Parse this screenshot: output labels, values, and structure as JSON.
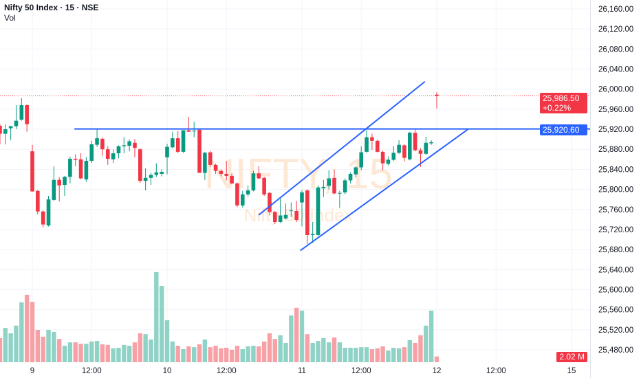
{
  "legend": {
    "title": "Nifty 50 Index · 15 · NSE",
    "volume": "Vol"
  },
  "watermark": {
    "line1": "NIFTY, 15",
    "line2": "Nifty 50 Index"
  },
  "colors": {
    "up": "#089981",
    "down": "#f23645",
    "up_vol": "#8fd2c6",
    "down_vol": "#f7a1a7",
    "line": "#2962ff",
    "grid": "#f0f3fa"
  },
  "tags": {
    "last_price": "25,986.50",
    "last_change": "+0.22%",
    "line_price": "25,920.60",
    "last_volume": "2.02 M"
  },
  "chart_data": {
    "type": "candlestick",
    "title": "Nifty 50 Index · 15 · NSE",
    "ylim": [
      25460,
      26180
    ],
    "price_ticks": [
      "26,160.00",
      "26,120.00",
      "26,080.00",
      "26,040.00",
      "26,000.00",
      "25,960.00",
      "25,920.00",
      "25,880.00",
      "25,840.00",
      "25,800.00",
      "25,760.00",
      "25,720.00",
      "25,680.00",
      "25,640.00",
      "25,600.00",
      "25,560.00",
      "25,520.00",
      "25,480.00"
    ],
    "time_ticks": [
      {
        "bar": 6,
        "label": "9"
      },
      {
        "bar": 17,
        "label": "12:00"
      },
      {
        "bar": 31,
        "label": "10"
      },
      {
        "bar": 42,
        "label": "12:00"
      },
      {
        "bar": 56,
        "label": "11"
      },
      {
        "bar": 67,
        "label": "12:00"
      },
      {
        "bar": 81,
        "label": "12"
      },
      {
        "bar": 92,
        "label": "12:00"
      },
      {
        "bar": 106,
        "label": "15"
      }
    ],
    "ohlc": [
      [
        25927,
        25930,
        25890,
        25911
      ],
      [
        25911,
        25930,
        25890,
        25920
      ],
      [
        25922,
        25927,
        25898,
        25926
      ],
      [
        25926,
        25968,
        25920,
        25937
      ],
      [
        25939,
        25982,
        25937,
        25968
      ],
      [
        25968,
        25970,
        25915,
        25930
      ],
      [
        25876,
        25889,
        25795,
        25796
      ],
      [
        25797,
        25799,
        25750,
        25756
      ],
      [
        25756,
        25758,
        25724,
        25730
      ],
      [
        25728,
        25787,
        25726,
        25780
      ],
      [
        25779,
        25846,
        25777,
        25819
      ],
      [
        25819,
        25824,
        25776,
        25808
      ],
      [
        25809,
        25827,
        25787,
        25825
      ],
      [
        25825,
        25865,
        25812,
        25861
      ],
      [
        25861,
        25870,
        25846,
        25859
      ],
      [
        25860,
        25872,
        25820,
        25822
      ],
      [
        25820,
        25864,
        25815,
        25857
      ],
      [
        25857,
        25897,
        25853,
        25890
      ],
      [
        25889,
        25922,
        25885,
        25902
      ],
      [
        25901,
        25904,
        25867,
        25880
      ],
      [
        25880,
        25886,
        25849,
        25861
      ],
      [
        25860,
        25880,
        25853,
        25872
      ],
      [
        25872,
        25888,
        25862,
        25886
      ],
      [
        25886,
        25904,
        25872,
        25888
      ],
      [
        25887,
        25900,
        25876,
        25896
      ],
      [
        25893,
        25900,
        25864,
        25883
      ],
      [
        25880,
        25882,
        25813,
        25817
      ],
      [
        25817,
        25842,
        25798,
        25823
      ],
      [
        25823,
        25833,
        25809,
        25829
      ],
      [
        25829,
        25852,
        25825,
        25834
      ],
      [
        25831,
        25840,
        25826,
        25835
      ],
      [
        25864,
        25891,
        25830,
        25885
      ],
      [
        25884,
        25915,
        25882,
        25902
      ],
      [
        25902,
        25916,
        25872,
        25875
      ],
      [
        25875,
        25918,
        25873,
        25918
      ],
      [
        25918,
        25945,
        25915,
        25915
      ],
      [
        25916,
        25935,
        25904,
        25917
      ],
      [
        25919,
        25921,
        25833,
        25833
      ],
      [
        25833,
        25875,
        25819,
        25873
      ],
      [
        25874,
        25877,
        25845,
        25849
      ],
      [
        25849,
        25851,
        25831,
        25837
      ],
      [
        25837,
        25840,
        25826,
        25831
      ],
      [
        25831,
        25857,
        25818,
        25827
      ],
      [
        25827,
        25832,
        25810,
        25812
      ],
      [
        25812,
        25814,
        25765,
        25768
      ],
      [
        25768,
        25797,
        25764,
        25790
      ],
      [
        25790,
        25808,
        25786,
        25798
      ],
      [
        25798,
        25837,
        25796,
        25832
      ],
      [
        25832,
        25846,
        25820,
        25822
      ],
      [
        25823,
        25825,
        25787,
        25790
      ],
      [
        25793,
        25795,
        25748,
        25755
      ],
      [
        25755,
        25757,
        25731,
        25735
      ],
      [
        25735,
        25785,
        25733,
        25748
      ],
      [
        25742,
        25772,
        25740,
        25749
      ],
      [
        25757,
        25774,
        25745,
        25758
      ],
      [
        25757,
        25777,
        25735,
        25739
      ],
      [
        25774,
        25798,
        25726,
        25794
      ],
      [
        25798,
        25800,
        25691,
        25709
      ],
      [
        25709,
        25735,
        25693,
        25711
      ],
      [
        25709,
        25808,
        25707,
        25804
      ],
      [
        25802,
        25819,
        25785,
        25805
      ],
      [
        25807,
        25838,
        25800,
        25822
      ],
      [
        25823,
        25840,
        25790,
        25792
      ],
      [
        25792,
        25797,
        25763,
        25793
      ],
      [
        25794,
        25822,
        25790,
        25818
      ],
      [
        25818,
        25834,
        25812,
        25831
      ],
      [
        25830,
        25846,
        25824,
        25844
      ],
      [
        25844,
        25886,
        25838,
        25874
      ],
      [
        25875,
        25918,
        25873,
        25904
      ],
      [
        25904,
        25911,
        25879,
        25897
      ],
      [
        25897,
        25899,
        25873,
        25875
      ],
      [
        25875,
        25877,
        25838,
        25852
      ],
      [
        25851,
        25866,
        25848,
        25859
      ],
      [
        25859,
        25886,
        25857,
        25873
      ],
      [
        25873,
        25898,
        25871,
        25889
      ],
      [
        25888,
        25890,
        25856,
        25863
      ],
      [
        25860,
        25915,
        25858,
        25913
      ],
      [
        25913,
        25920,
        25876,
        25878
      ],
      [
        25878,
        25882,
        25845,
        25871
      ],
      [
        25871,
        25905,
        25869,
        25893
      ],
      [
        25892,
        25898,
        25889,
        25894
      ],
      [
        25989,
        25994,
        25961,
        25986.5
      ]
    ],
    "volume_millions": [
      8.5,
      12.1,
      10.2,
      12.9,
      21.1,
      23.8,
      21.3,
      11.4,
      9.0,
      11.4,
      10.7,
      8.2,
      5.8,
      7.0,
      7.0,
      6.5,
      6.5,
      7.3,
      7.5,
      6.3,
      6.1,
      4.9,
      5.1,
      6.1,
      5.8,
      7.0,
      10.2,
      9.9,
      8.0,
      31.8,
      26.9,
      14.8,
      7.3,
      5.8,
      4.6,
      5.6,
      5.3,
      6.3,
      8.0,
      5.3,
      5.8,
      4.9,
      5.1,
      4.4,
      5.8,
      4.6,
      5.6,
      5.8,
      5.6,
      7.3,
      10.2,
      8.2,
      9.5,
      6.8,
      16.5,
      19.2,
      18.2,
      9.9,
      6.8,
      7.5,
      8.5,
      7.0,
      8.7,
      7.0,
      5.1,
      5.1,
      5.1,
      5.3,
      5.3,
      4.6,
      4.9,
      5.6,
      4.1,
      5.1,
      4.9,
      5.3,
      7.8,
      6.8,
      9.5,
      12.9,
      18.2,
      2.02
    ],
    "last_price": 25986.5,
    "drawings": [
      {
        "name": "resistance-line",
        "type": "horizontal-ray",
        "from_bar": 13.8,
        "price": 25920.6
      },
      {
        "name": "channel-upper-line",
        "type": "trendline",
        "from": [
          48.0,
          25749
        ],
        "to": [
          78.8,
          26015
        ]
      },
      {
        "name": "channel-lower-line",
        "type": "trendline",
        "from": [
          55.7,
          25678
        ],
        "to": [
          86.8,
          25920
        ]
      }
    ]
  }
}
